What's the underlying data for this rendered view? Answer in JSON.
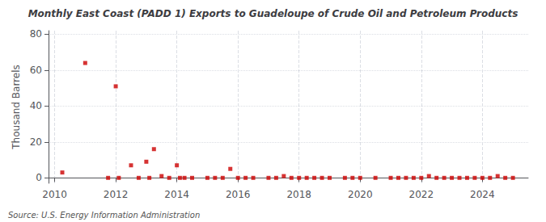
{
  "chart_data": {
    "type": "scatter",
    "title": "Monthly East Coast (PADD 1) Exports to Guadeloupe of Crude Oil and Petroleum Products",
    "ylabel": "Thousand Barrels",
    "annotations": [
      "Source: U.S. Energy Information Administration"
    ],
    "x": [
      2010.25,
      2011.0,
      2011.75,
      2012.0,
      2012.1,
      2012.5,
      2012.75,
      2013.0,
      2013.1,
      2013.25,
      2013.5,
      2013.75,
      2014.0,
      2014.1,
      2014.25,
      2014.5,
      2015.0,
      2015.25,
      2015.5,
      2015.75,
      2016.0,
      2016.25,
      2016.5,
      2017.0,
      2017.25,
      2017.5,
      2017.75,
      2018.0,
      2018.25,
      2018.5,
      2018.75,
      2019.0,
      2019.5,
      2019.75,
      2020.0,
      2020.5,
      2021.0,
      2021.25,
      2021.5,
      2021.75,
      2022.0,
      2022.25,
      2022.5,
      2022.75,
      2023.0,
      2023.25,
      2023.5,
      2023.75,
      2024.0,
      2024.25,
      2024.5,
      2024.75,
      2025.0
    ],
    "values": [
      3,
      64,
      0,
      51,
      0,
      7,
      0,
      9,
      0,
      16,
      1,
      0,
      7,
      0,
      0,
      0,
      0,
      0,
      0,
      5,
      0,
      0,
      0,
      0,
      0,
      1,
      0,
      0,
      0,
      0,
      0,
      0,
      0,
      0,
      0,
      0,
      0,
      0,
      0,
      0,
      0,
      1,
      0,
      0,
      0,
      0,
      0,
      0,
      0,
      0,
      1,
      0,
      0
    ],
    "color": "#cc0000",
    "marker": "square",
    "xlim": [
      2009.8,
      2025.5
    ],
    "ylim": [
      -3,
      82
    ],
    "xticks": [
      2010,
      2012,
      2014,
      2016,
      2018,
      2020,
      2022,
      2024
    ],
    "yticks": [
      0,
      20,
      40,
      60,
      80
    ],
    "grid": true
  }
}
